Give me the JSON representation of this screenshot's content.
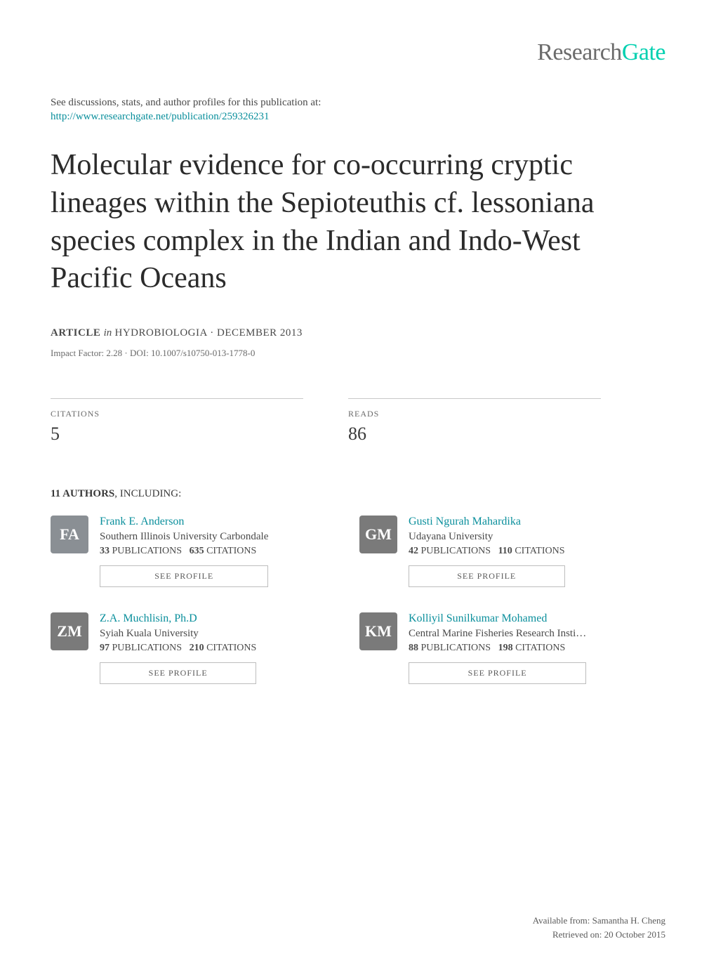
{
  "logo": {
    "part1": "Research",
    "part2": "Gate"
  },
  "intro_text": "See discussions, stats, and author profiles for this publication at:",
  "publication_url": "http://www.researchgate.net/publication/259326231",
  "title": "Molecular evidence for co-occurring cryptic lineages within the Sepioteuthis cf. lessoniana species complex in the Indian and Indo-West Pacific Oceans",
  "meta": {
    "type_label": "ARTICLE",
    "in_word": "in",
    "journal": "HYDROBIOLOGIA",
    "date": "DECEMBER 2013",
    "impact_line": "Impact Factor: 2.28 · DOI: 10.1007/s10750-013-1778-0"
  },
  "stats": {
    "citations": {
      "label": "CITATIONS",
      "value": "5"
    },
    "reads": {
      "label": "READS",
      "value": "86"
    }
  },
  "authors_heading": {
    "count": "11 AUTHORS",
    "suffix": ", INCLUDING:"
  },
  "authors": [
    {
      "initials": "FA",
      "avatar_bg": "#8a8f94",
      "name": "Frank E. Anderson",
      "affiliation": "Southern Illinois University Carbondale",
      "pubs": "33",
      "pubs_label": "PUBLICATIONS",
      "cits": "635",
      "cits_label": "CITATIONS",
      "profile_btn": "SEE PROFILE"
    },
    {
      "initials": "GM",
      "avatar_bg": "#6b4a2e",
      "name": "Gusti Ngurah Mahardika",
      "affiliation": "Udayana University",
      "pubs": "42",
      "pubs_label": "PUBLICATIONS",
      "cits": "110",
      "cits_label": "CITATIONS",
      "profile_btn": "SEE PROFILE"
    },
    {
      "initials": "ZM",
      "avatar_bg": "#3f6b3a",
      "name": "Z.A. Muchlisin, Ph.D",
      "affiliation": "Syiah Kuala University",
      "pubs": "97",
      "pubs_label": "PUBLICATIONS",
      "cits": "210",
      "cits_label": "CITATIONS",
      "profile_btn": "SEE PROFILE"
    },
    {
      "initials": "KM",
      "avatar_bg": "#7a3a4a",
      "name": "Kolliyil Sunilkumar Mohamed",
      "affiliation": "Central Marine Fisheries Research Insti…",
      "pubs": "88",
      "pubs_label": "PUBLICATIONS",
      "cits": "198",
      "cits_label": "CITATIONS",
      "profile_btn": "SEE PROFILE"
    }
  ],
  "footer": {
    "line1": "Available from: Samantha H. Cheng",
    "line2": "Retrieved on: 20 October 2015"
  }
}
